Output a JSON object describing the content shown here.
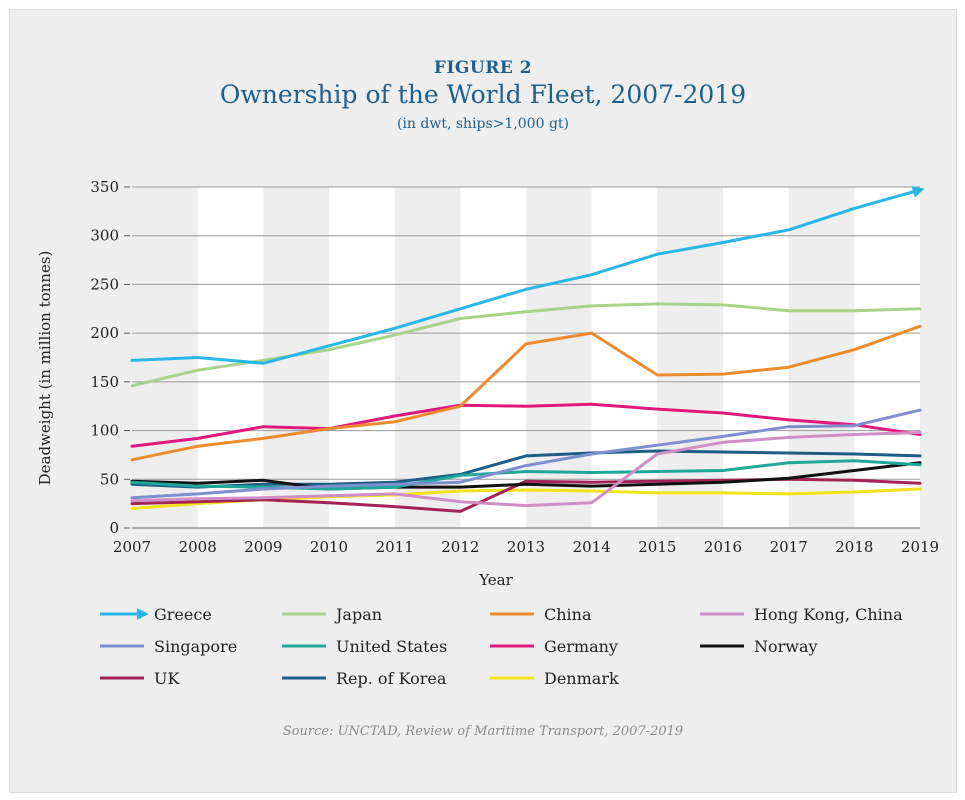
{
  "figure": {
    "label": "FIGURE 2",
    "title": "Ownership of the World Fleet, 2007-2019",
    "subtitle": "(in dwt, ships>1,000 gt)",
    "source": "Source: UNCTAD, Review of Maritime Transport, 2007-2019"
  },
  "colors": {
    "background": "#eeeeee",
    "grid": "#999999",
    "axis_text": "#222222"
  },
  "chart_data": {
    "type": "line",
    "xlabel": "Year",
    "ylabel": "Deadweight (in million tonnes)",
    "x": [
      "2007",
      "2008",
      "2009",
      "2010",
      "2011",
      "2012",
      "2013",
      "2014",
      "2015",
      "2016",
      "2017",
      "2018",
      "2019"
    ],
    "ylim": [
      0,
      350
    ],
    "yticks": [
      "0",
      "50",
      "100",
      "150",
      "200",
      "250",
      "300",
      "350"
    ],
    "grid": true,
    "legend_position": "bottom",
    "series": [
      {
        "name": "Greece",
        "color": "#29b6e8",
        "arrow": true,
        "values": [
          172,
          175,
          169,
          187,
          205,
          225,
          245,
          260,
          281,
          293,
          306,
          328,
          347
        ]
      },
      {
        "name": "Japan",
        "color": "#a8d48a",
        "values": [
          146,
          162,
          172,
          183,
          198,
          215,
          222,
          228,
          230,
          229,
          223,
          223,
          225
        ]
      },
      {
        "name": "China",
        "color": "#ee8b2e",
        "values": [
          70,
          84,
          92,
          102,
          109,
          125,
          189,
          200,
          157,
          158,
          165,
          183,
          207
        ]
      },
      {
        "name": "Hong Kong, China",
        "color": "#cf8ec8",
        "values": [
          28,
          30,
          31,
          33,
          35,
          27,
          23,
          26,
          76,
          88,
          93,
          96,
          98
        ]
      },
      {
        "name": "Singapore",
        "color": "#7d8fcf",
        "values": [
          31,
          35,
          40,
          43,
          45,
          47,
          64,
          76,
          85,
          94,
          104,
          105,
          121
        ]
      },
      {
        "name": "United States",
        "color": "#1fa79a",
        "values": [
          47,
          43,
          42,
          40,
          42,
          54,
          58,
          57,
          58,
          59,
          67,
          69,
          65
        ]
      },
      {
        "name": "Germany",
        "color": "#e0177d",
        "values": [
          84,
          92,
          104,
          102,
          115,
          126,
          125,
          127,
          122,
          118,
          111,
          106,
          96
        ]
      },
      {
        "name": "Norway",
        "color": "#111111",
        "values": [
          48,
          46,
          49,
          40,
          42,
          42,
          45,
          43,
          45,
          47,
          51,
          59,
          67
        ]
      },
      {
        "name": "UK",
        "color": "#a32454",
        "values": [
          25,
          27,
          29,
          26,
          22,
          17,
          48,
          47,
          48,
          49,
          50,
          49,
          46
        ]
      },
      {
        "name": "Rep. of Korea",
        "color": "#1d5e86",
        "values": [
          45,
          42,
          45,
          45,
          47,
          55,
          74,
          77,
          79,
          78,
          77,
          76,
          74
        ]
      },
      {
        "name": "Denmark",
        "color": "#f2e21b",
        "values": [
          20,
          25,
          29,
          32,
          34,
          38,
          39,
          38,
          36,
          36,
          35,
          37,
          40
        ]
      }
    ]
  }
}
